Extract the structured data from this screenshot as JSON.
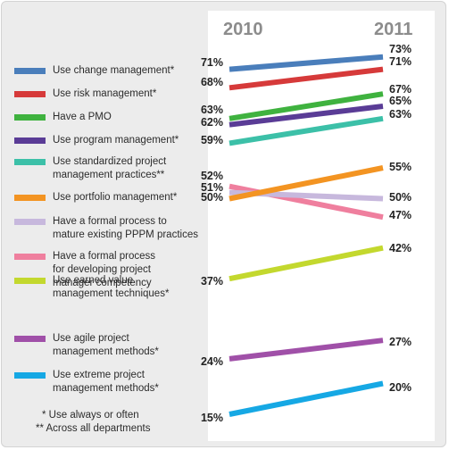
{
  "chart_data": {
    "type": "line",
    "x": [
      "2010",
      "2011"
    ],
    "series": [
      {
        "name": "Use change management*",
        "values": [
          71,
          73
        ],
        "color": "#4a7ebb",
        "labels": [
          "71%",
          "73%"
        ]
      },
      {
        "name": "Use risk management*",
        "values": [
          68,
          71
        ],
        "color": "#d63a3a",
        "labels": [
          "68%",
          "71%"
        ]
      },
      {
        "name": "Have a PMO",
        "values": [
          63,
          67
        ],
        "color": "#3fb23f",
        "labels": [
          "63%",
          "67%"
        ]
      },
      {
        "name": "Use program management*",
        "values": [
          62,
          65
        ],
        "color": "#5a3c96",
        "labels": [
          "62%",
          "65%"
        ]
      },
      {
        "name": "Use standardized project management practices**",
        "values": [
          59,
          63
        ],
        "color": "#3cc0a8",
        "labels": [
          "59%",
          "63%"
        ]
      },
      {
        "name": "Use portfolio management*",
        "values": [
          50,
          55
        ],
        "color": "#f39422",
        "labels": [
          "50%",
          "55%"
        ]
      },
      {
        "name": "Have a formal process to mature existing PPPM practices",
        "values": [
          51,
          50
        ],
        "color": "#c7b8dd",
        "labels": [
          "51%",
          "50%"
        ]
      },
      {
        "name": "Have a formal process for developing project manager competency",
        "values": [
          52,
          47
        ],
        "color": "#ef7f9e",
        "labels": [
          "52%",
          "47%"
        ]
      },
      {
        "name": "Use earned value management techniques*",
        "values": [
          37,
          42
        ],
        "color": "#c3d82e",
        "labels": [
          "37%",
          "42%"
        ]
      },
      {
        "name": "Use agile project management methods*",
        "values": [
          24,
          27
        ],
        "color": "#a050a8",
        "labels": [
          "24%",
          "27%"
        ]
      },
      {
        "name": "Use extreme project management methods*",
        "values": [
          15,
          20
        ],
        "color": "#16a8e4",
        "labels": [
          "15%",
          "20%"
        ]
      }
    ],
    "legend": {
      "items": [
        {
          "lines": [
            "Use change management*"
          ]
        },
        {
          "lines": [
            "Use risk management*"
          ]
        },
        {
          "lines": [
            "Have a PMO"
          ]
        },
        {
          "lines": [
            "Use program management*"
          ]
        },
        {
          "lines": [
            "Use standardized project",
            "management practices**"
          ]
        },
        {
          "lines": [
            "Use portfolio management*"
          ]
        },
        {
          "lines": [
            "Have a formal process to",
            "mature existing PPPM practices"
          ]
        },
        {
          "lines": [
            "Have a formal process",
            "for developing project",
            "manager competency"
          ]
        },
        {
          "lines": [
            "Use earned value",
            "management techniques*"
          ]
        },
        {
          "lines": [
            "Use agile project",
            "management methods*"
          ]
        },
        {
          "lines": [
            "Use extreme project",
            "management methods*"
          ]
        }
      ],
      "placement": "left"
    },
    "footnotes": [
      "* Use always or often",
      "** Across all departments"
    ],
    "header_color": "#8c8c8c",
    "label_color": "#222222"
  }
}
